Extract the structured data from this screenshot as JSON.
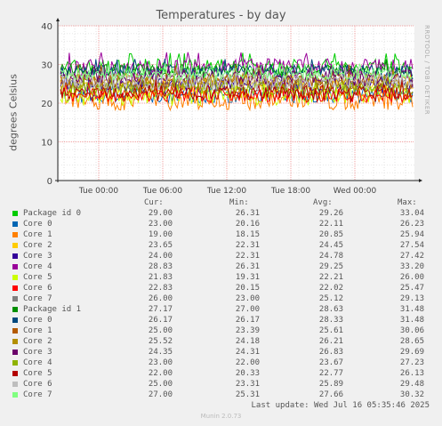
{
  "chart_data": {
    "type": "line",
    "title": "Temperatures - by day",
    "ylabel": "degrees Celsius",
    "ylim": [
      0,
      40
    ],
    "yticks": [
      0,
      10,
      20,
      30,
      40
    ],
    "xticks": [
      "Tue 00:00",
      "Tue 06:00",
      "Tue 12:00",
      "Tue 18:00",
      "Wed 00:00"
    ],
    "grid": true,
    "side_text": "RRDTOOL / TOBI OETIKER",
    "legend_headers": [
      "Cur:",
      "Min:",
      "Avg:",
      "Max:"
    ],
    "series": [
      {
        "name": "Package id 0",
        "color": "#00cc00",
        "cur": "29.00",
        "min": "26.31",
        "avg": "29.26",
        "max": "33.04"
      },
      {
        "name": "Core 0",
        "color": "#0066b3",
        "cur": "23.00",
        "min": "20.16",
        "avg": "22.11",
        "max": "26.23"
      },
      {
        "name": "Core 1",
        "color": "#ff8000",
        "cur": "19.00",
        "min": "18.15",
        "avg": "20.85",
        "max": "25.94"
      },
      {
        "name": "Core 2",
        "color": "#ffcc00",
        "cur": "23.65",
        "min": "22.31",
        "avg": "24.45",
        "max": "27.54"
      },
      {
        "name": "Core 3",
        "color": "#330099",
        "cur": "24.00",
        "min": "22.31",
        "avg": "24.78",
        "max": "27.42"
      },
      {
        "name": "Core 4",
        "color": "#990099",
        "cur": "28.83",
        "min": "26.31",
        "avg": "29.25",
        "max": "33.20"
      },
      {
        "name": "Core 5",
        "color": "#ccff00",
        "cur": "21.83",
        "min": "19.31",
        "avg": "22.21",
        "max": "26.00"
      },
      {
        "name": "Core 6",
        "color": "#ff0000",
        "cur": "22.83",
        "min": "20.15",
        "avg": "22.02",
        "max": "25.47"
      },
      {
        "name": "Core 7",
        "color": "#808080",
        "cur": "26.00",
        "min": "23.00",
        "avg": "25.12",
        "max": "29.13"
      },
      {
        "name": "Package id 1",
        "color": "#008f00",
        "cur": "27.17",
        "min": "27.00",
        "avg": "28.63",
        "max": "31.48"
      },
      {
        "name": "Core 0",
        "color": "#00487d",
        "cur": "26.17",
        "min": "26.17",
        "avg": "28.33",
        "max": "31.48"
      },
      {
        "name": "Core 1",
        "color": "#b35a00",
        "cur": "25.00",
        "min": "23.39",
        "avg": "25.61",
        "max": "30.06"
      },
      {
        "name": "Core 2",
        "color": "#b38f00",
        "cur": "25.52",
        "min": "24.18",
        "avg": "26.21",
        "max": "28.65"
      },
      {
        "name": "Core 3",
        "color": "#6b006b",
        "cur": "24.35",
        "min": "24.31",
        "avg": "26.83",
        "max": "29.69"
      },
      {
        "name": "Core 4",
        "color": "#8fb300",
        "cur": "23.00",
        "min": "22.00",
        "avg": "23.67",
        "max": "27.23"
      },
      {
        "name": "Core 5",
        "color": "#b30000",
        "cur": "22.00",
        "min": "20.33",
        "avg": "22.77",
        "max": "26.13"
      },
      {
        "name": "Core 6",
        "color": "#bebebe",
        "cur": "25.00",
        "min": "23.31",
        "avg": "25.89",
        "max": "29.48"
      },
      {
        "name": "Core 7",
        "color": "#80ff80",
        "cur": "27.00",
        "min": "25.31",
        "avg": "27.66",
        "max": "30.32"
      }
    ]
  },
  "last_update": "Last update: Wed Jul 16 05:35:46 2025",
  "footer": "Munin 2.0.73"
}
